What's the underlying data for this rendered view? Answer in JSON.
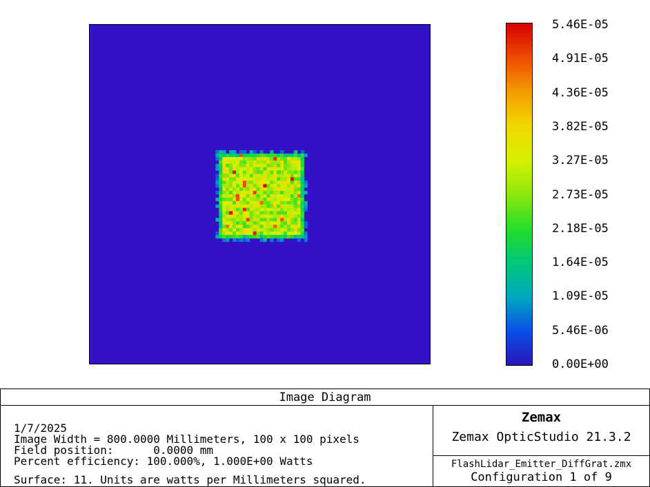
{
  "chart_data": {
    "type": "heatmap",
    "title": "Image Diagram",
    "xlabel": "",
    "ylabel": "",
    "grid_size": [
      100,
      100
    ],
    "background_value": 0.0,
    "bright_region": {
      "description_value_range": [
        1.09e-05,
        5.46e-05
      ],
      "row_range": [
        38,
        62
      ],
      "col_range": [
        38,
        62
      ],
      "typical_value": 2.9e-05
    },
    "colorbar": {
      "min": 0.0,
      "max": 5.46e-05,
      "tick_labels": [
        "5.46E-05",
        "4.91E-05",
        "4.36E-05",
        "3.82E-05",
        "3.27E-05",
        "2.73E-05",
        "2.18E-05",
        "1.64E-05",
        "1.09E-05",
        "5.46E-06",
        "0.00E+00"
      ],
      "colormap": "rainbow (blue to red)"
    }
  },
  "panel": {
    "title": "Image Diagram",
    "date": "1/7/2025",
    "image_width": "Image Width = 800.0000 Millimeters, 100 x 100 pixels",
    "field_position": "Field position:      0.0000 mm",
    "efficiency": "Percent efficiency: 100.000%, 1.000E+00 Watts",
    "surface": "Surface: 11. Units are watts per Millimeters squared.",
    "brand": "Zemax",
    "product": "Zemax OpticStudio 21.3.2",
    "filename": "FlashLidar_Emitter_DiffGrat.zmx",
    "configuration": "Configuration 1 of 9"
  },
  "colors": {
    "background_map": "#3311c4",
    "border": "#000000"
  }
}
